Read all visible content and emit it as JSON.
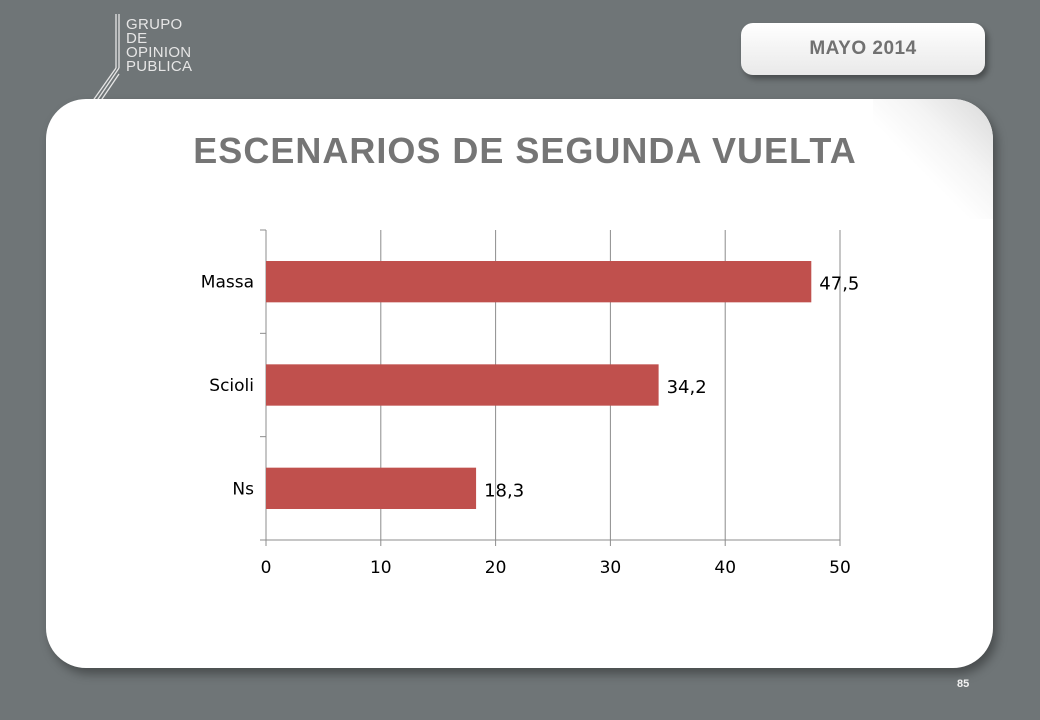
{
  "header": {
    "logo_lines": [
      "GRUPO",
      "DE",
      "OPINION",
      "PUBLICA"
    ],
    "date_label": "MAYO  2014"
  },
  "slide": {
    "title": "ESCENARIOS DE SEGUNDA VUELTA",
    "page_number": "85"
  },
  "colors": {
    "bar": "#c0504d",
    "background": "#6f7577",
    "grid": "#8c8c8c"
  },
  "chart_data": {
    "type": "bar",
    "orientation": "horizontal",
    "categories": [
      "Massa",
      "Scioli",
      "Ns"
    ],
    "values": [
      47.5,
      34.2,
      18.3
    ],
    "value_labels": [
      "47,5",
      "34,2",
      "18,3"
    ],
    "xlim": [
      0,
      50
    ],
    "x_ticks": [
      0,
      10,
      20,
      30,
      40,
      50
    ],
    "grid": true,
    "title": "",
    "xlabel": "",
    "ylabel": ""
  }
}
